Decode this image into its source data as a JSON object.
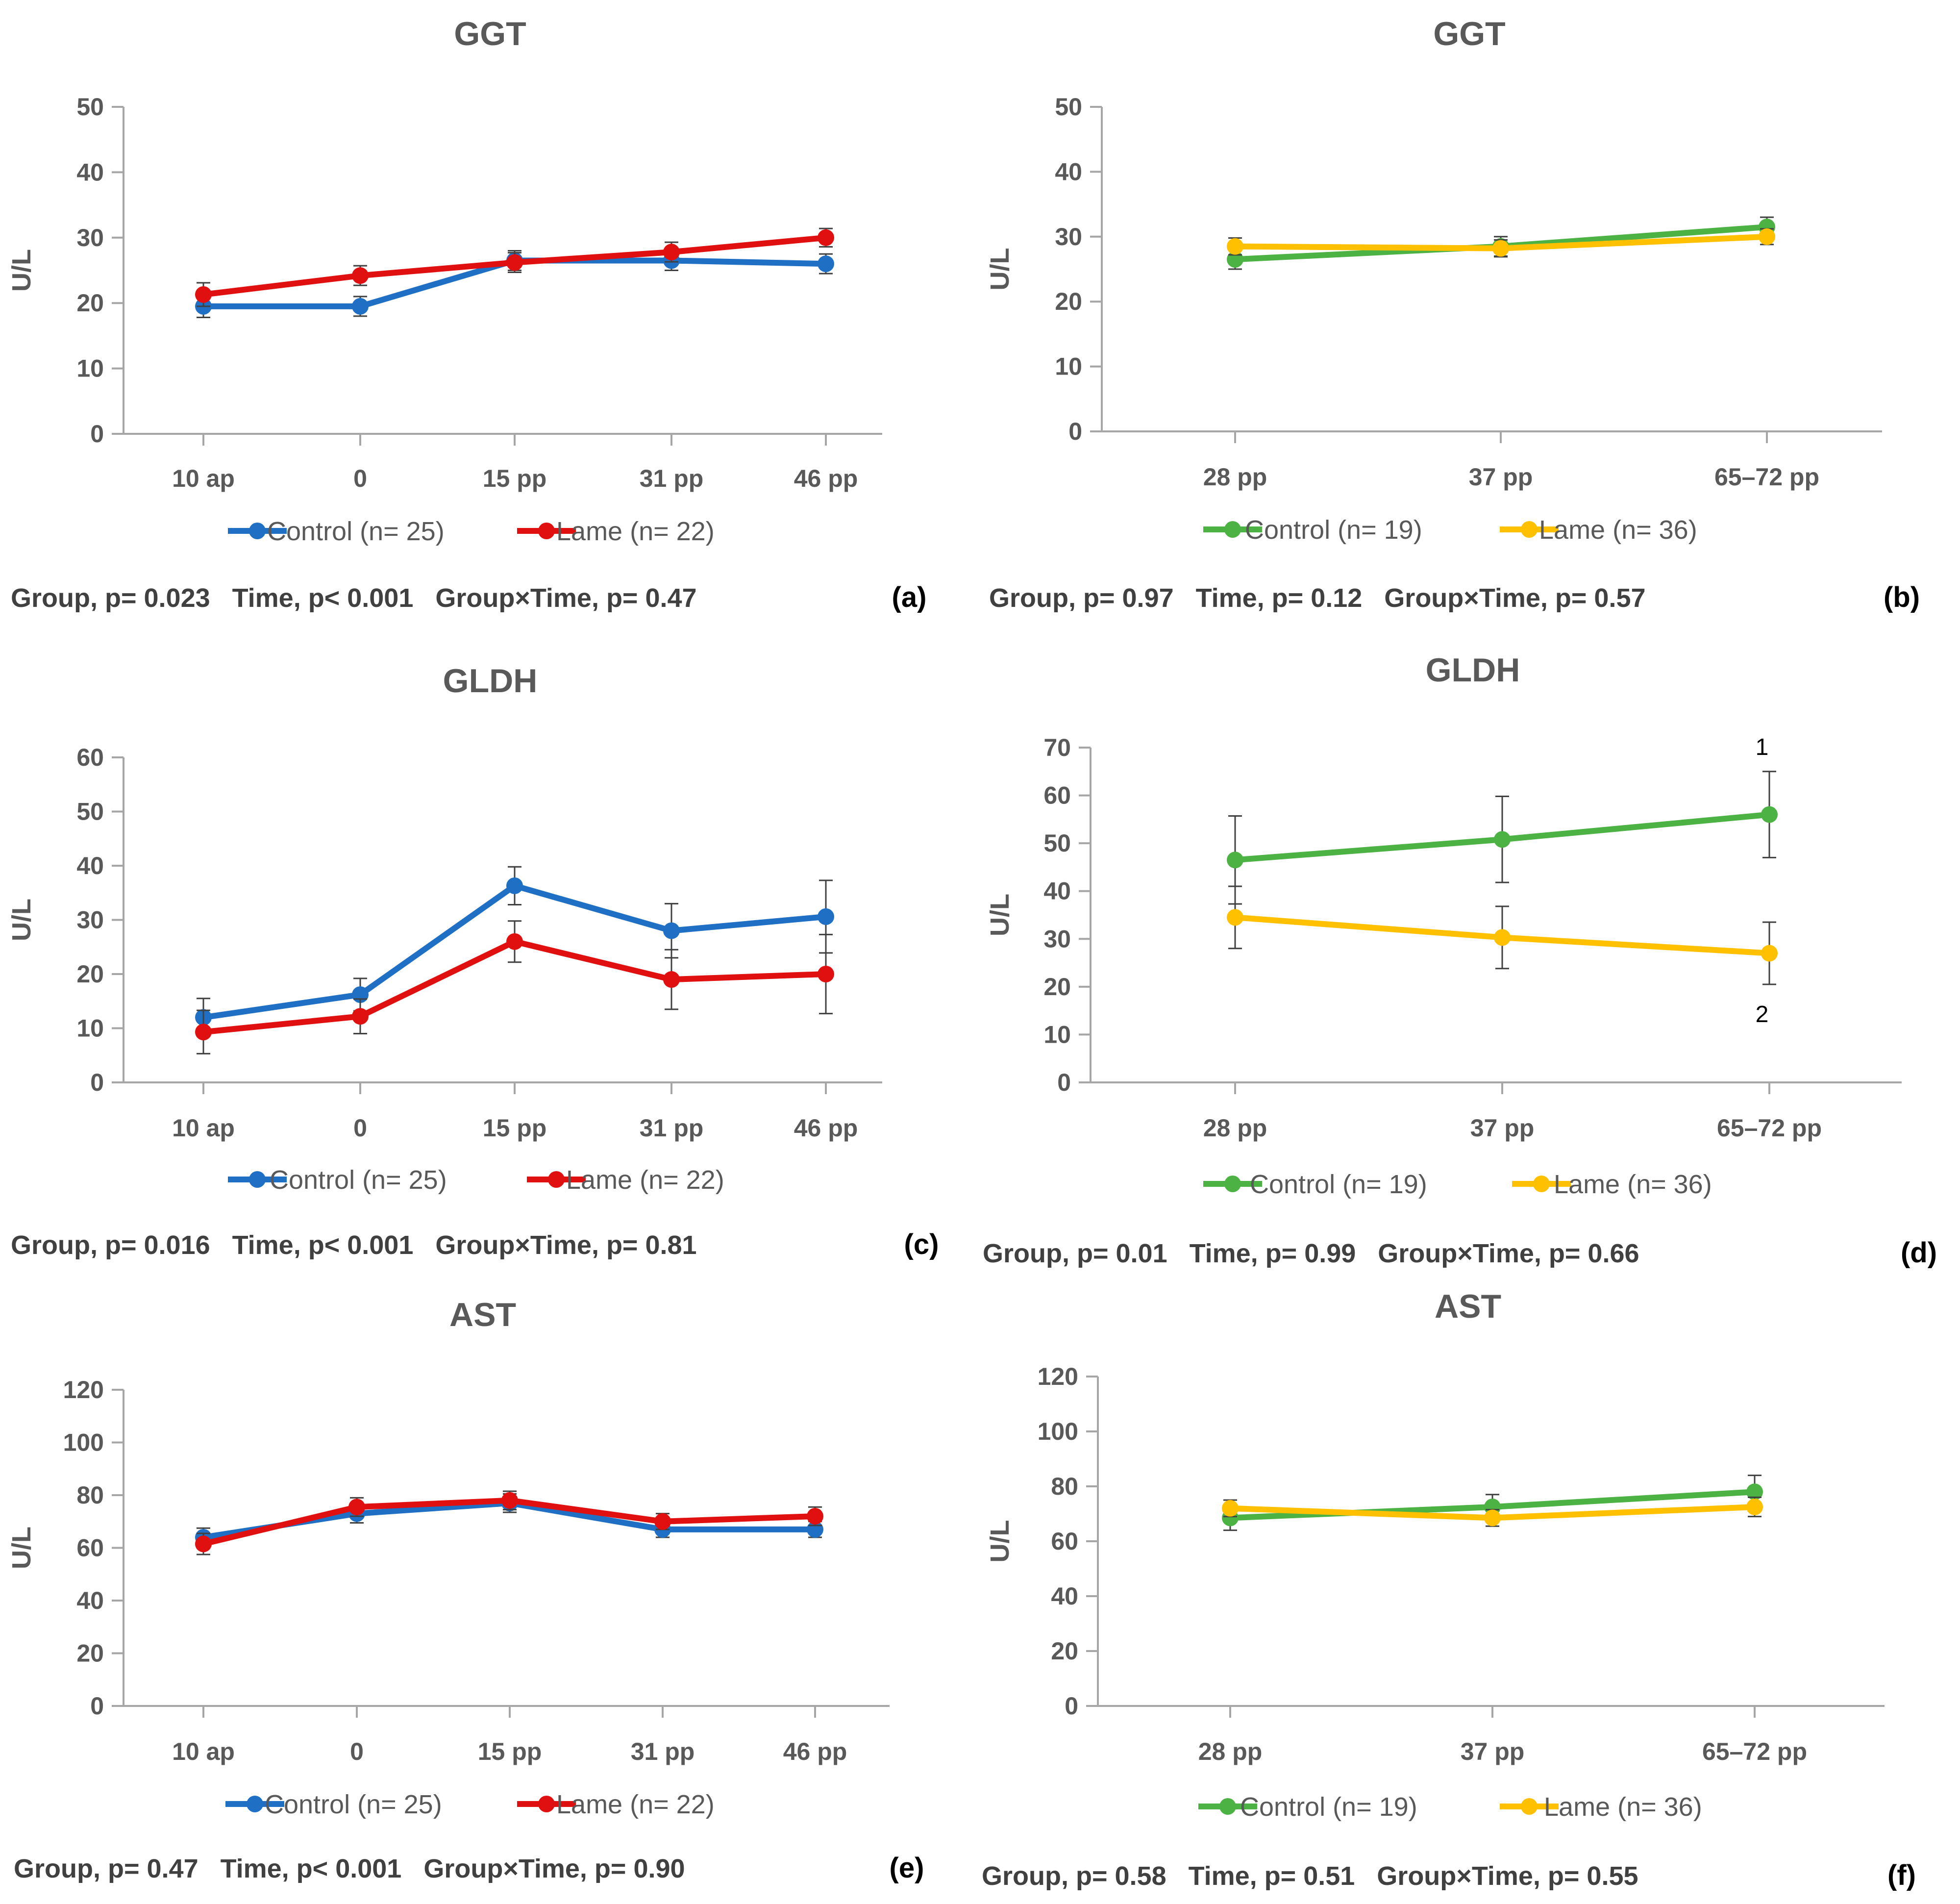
{
  "chart_data": [
    {
      "type": "line",
      "title": "GGT",
      "ylabel": "U/L",
      "xlabel": "",
      "ylim": [
        0,
        50
      ],
      "yticks": [
        0,
        10,
        20,
        30,
        40,
        50
      ],
      "categories": [
        "10 ap",
        "0",
        "15 pp",
        "31 pp",
        "46 pp"
      ],
      "series": [
        {
          "name": "Control (n= 25)",
          "color": "#1f6fc5",
          "values": [
            19.5,
            19.5,
            26.5,
            26.5,
            26
          ],
          "errors": [
            1.7,
            1.5,
            1.5,
            1.5,
            1.5
          ]
        },
        {
          "name": "Lame (n= 22)",
          "color": "#e01010",
          "values": [
            21.3,
            24.2,
            26.2,
            27.8,
            30
          ],
          "errors": [
            1.8,
            1.5,
            1.5,
            1.5,
            1.4
          ]
        }
      ],
      "stats": "Group, p= 0.023   Time, p< 0.001   Group×Time, p= 0.47",
      "panel_label": "(a)"
    },
    {
      "type": "line",
      "title": "GGT",
      "ylabel": "U/L",
      "xlabel": "",
      "ylim": [
        0,
        50
      ],
      "yticks": [
        0,
        10,
        20,
        30,
        40,
        50
      ],
      "categories": [
        "28 pp",
        "37 pp",
        "65–72 pp"
      ],
      "series": [
        {
          "name": "Control (n= 19)",
          "color": "#4cb244",
          "values": [
            26.5,
            28.5,
            31.5
          ],
          "errors": [
            1.5,
            1.5,
            1.5
          ]
        },
        {
          "name": "Lame (n= 36)",
          "color": "#ffc000",
          "values": [
            28.5,
            28.2,
            30
          ],
          "errors": [
            1.3,
            1.3,
            1.2
          ]
        }
      ],
      "stats": "Group, p= 0.97   Time, p= 0.12   Group×Time, p= 0.57",
      "panel_label": "(b)"
    },
    {
      "type": "line",
      "title": "GLDH",
      "ylabel": "U/L",
      "xlabel": "",
      "ylim": [
        0,
        60
      ],
      "yticks": [
        0,
        10,
        20,
        30,
        40,
        50,
        60
      ],
      "categories": [
        "10 ap",
        "0",
        "15 pp",
        "31 pp",
        "46 pp"
      ],
      "series": [
        {
          "name": "Control (n= 25)",
          "color": "#1f6fc5",
          "values": [
            12,
            16.2,
            36.3,
            28,
            30.6
          ],
          "errors": [
            3.5,
            3,
            3.5,
            5,
            6.7
          ]
        },
        {
          "name": "Lame (n= 22)",
          "color": "#e01010",
          "values": [
            9.3,
            12.2,
            26,
            19,
            20
          ],
          "errors": [
            4,
            3.2,
            3.8,
            5.5,
            7.3
          ]
        }
      ],
      "stats": "Group, p= 0.016   Time, p< 0.001   Group×Time, p= 0.81",
      "panel_label": "(c)"
    },
    {
      "type": "line",
      "title": "GLDH",
      "ylabel": "U/L",
      "xlabel": "",
      "ylim": [
        0,
        70
      ],
      "yticks": [
        0,
        10,
        20,
        30,
        40,
        50,
        60,
        70
      ],
      "categories": [
        "28 pp",
        "37 pp",
        "65–72 pp"
      ],
      "series": [
        {
          "name": "Control (n= 19)",
          "color": "#4cb244",
          "values": [
            46.5,
            50.8,
            56
          ],
          "errors": [
            9.2,
            9,
            9
          ]
        },
        {
          "name": "Lame (n= 36)",
          "color": "#ffc000",
          "values": [
            34.5,
            30.3,
            27
          ],
          "errors": [
            6.5,
            6.5,
            6.5
          ]
        }
      ],
      "annotations": [
        "1",
        "2"
      ],
      "stats": "Group, p= 0.01   Time, p= 0.99   Group×Time, p= 0.66",
      "panel_label": "(d)"
    },
    {
      "type": "line",
      "title": "AST",
      "ylabel": "U/L",
      "xlabel": "",
      "ylim": [
        0,
        120
      ],
      "yticks": [
        0,
        20,
        40,
        60,
        80,
        100,
        120
      ],
      "categories": [
        "10 ap",
        "0",
        "15 pp",
        "31 pp",
        "46 pp"
      ],
      "series": [
        {
          "name": "Control (n= 25)",
          "color": "#1f6fc5",
          "values": [
            64,
            73,
            77,
            67,
            67
          ],
          "errors": [
            3.5,
            3.5,
            3.5,
            3,
            3
          ]
        },
        {
          "name": "Lame (n= 22)",
          "color": "#e01010",
          "values": [
            61.5,
            75.5,
            78,
            70,
            72
          ],
          "errors": [
            4,
            3.5,
            3.5,
            3,
            3.5
          ]
        }
      ],
      "stats": "Group, p= 0.47   Time, p< 0.001   Group×Time, p= 0.90",
      "panel_label": "(e)"
    },
    {
      "type": "line",
      "title": "AST",
      "ylabel": "U/L",
      "xlabel": "",
      "ylim": [
        0,
        120
      ],
      "yticks": [
        0,
        20,
        40,
        60,
        80,
        100,
        120
      ],
      "categories": [
        "28 pp",
        "37 pp",
        "65–72 pp"
      ],
      "series": [
        {
          "name": "Control (n= 19)",
          "color": "#4cb244",
          "values": [
            68.5,
            72.5,
            78
          ],
          "errors": [
            4.5,
            4.5,
            6
          ]
        },
        {
          "name": "Lame (n= 36)",
          "color": "#ffc000",
          "values": [
            72,
            68.5,
            72.5
          ],
          "errors": [
            3,
            3,
            3.5
          ]
        }
      ],
      "stats": "Group, p= 0.58   Time, p= 0.51   Group×Time, p= 0.55",
      "panel_label": "(f)"
    }
  ]
}
